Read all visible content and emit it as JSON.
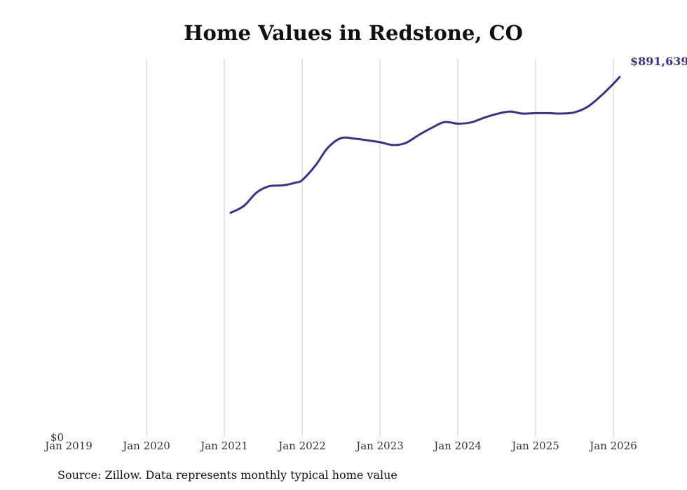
{
  "chart_data": {
    "type": "line",
    "title": "Home Values in Redstone, CO",
    "xlabel": "",
    "ylabel": "",
    "ylim": [
      0,
      940000
    ],
    "y_tick_labels": [
      "$0"
    ],
    "x_tick_labels": [
      "Jan 2019",
      "Jan 2020",
      "Jan 2021",
      "Jan 2022",
      "Jan 2023",
      "Jan 2024",
      "Jan 2025",
      "Jan 2026"
    ],
    "x_tick_years": [
      2019,
      2020,
      2021,
      2022,
      2023,
      2024,
      2025,
      2026
    ],
    "series": [
      {
        "name": "Typical home value",
        "color": "#3a3189",
        "end_label": "$891,639",
        "points": [
          {
            "t": 2021.08,
            "v": 555000
          },
          {
            "t": 2021.25,
            "v": 572000
          },
          {
            "t": 2021.42,
            "v": 606000
          },
          {
            "t": 2021.58,
            "v": 621000
          },
          {
            "t": 2021.75,
            "v": 623000
          },
          {
            "t": 2021.92,
            "v": 630000
          },
          {
            "t": 2022.0,
            "v": 636000
          },
          {
            "t": 2022.17,
            "v": 672000
          },
          {
            "t": 2022.33,
            "v": 716000
          },
          {
            "t": 2022.5,
            "v": 740000
          },
          {
            "t": 2022.67,
            "v": 739000
          },
          {
            "t": 2022.83,
            "v": 735000
          },
          {
            "t": 2023.0,
            "v": 730000
          },
          {
            "t": 2023.17,
            "v": 723000
          },
          {
            "t": 2023.33,
            "v": 728000
          },
          {
            "t": 2023.5,
            "v": 748000
          },
          {
            "t": 2023.67,
            "v": 766000
          },
          {
            "t": 2023.83,
            "v": 780000
          },
          {
            "t": 2024.0,
            "v": 776000
          },
          {
            "t": 2024.17,
            "v": 779000
          },
          {
            "t": 2024.33,
            "v": 790000
          },
          {
            "t": 2024.5,
            "v": 800000
          },
          {
            "t": 2024.67,
            "v": 806000
          },
          {
            "t": 2024.83,
            "v": 801000
          },
          {
            "t": 2025.0,
            "v": 802000
          },
          {
            "t": 2025.17,
            "v": 802000
          },
          {
            "t": 2025.33,
            "v": 801000
          },
          {
            "t": 2025.5,
            "v": 804000
          },
          {
            "t": 2025.67,
            "v": 818000
          },
          {
            "t": 2025.83,
            "v": 843000
          },
          {
            "t": 2026.0,
            "v": 875000
          },
          {
            "t": 2026.08,
            "v": 891639
          }
        ]
      }
    ],
    "grid": "vertical",
    "source": "Source: Zillow. Data represents monthly typical home value"
  }
}
